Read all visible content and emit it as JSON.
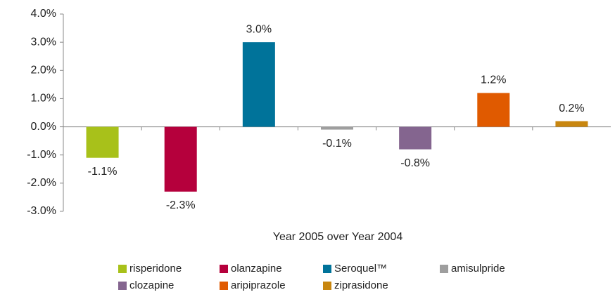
{
  "chart_data": {
    "type": "bar",
    "x_label": "Year 2005 over Year 2004",
    "ylim": [
      -3,
      4
    ],
    "yticks": [
      {
        "value": -3,
        "label": "-3.0%"
      },
      {
        "value": -2,
        "label": "-2.0%"
      },
      {
        "value": -1,
        "label": "-1.0%"
      },
      {
        "value": 0,
        "label": "0.0%"
      },
      {
        "value": 1,
        "label": "1.0%"
      },
      {
        "value": 2,
        "label": "2.0%"
      },
      {
        "value": 3,
        "label": "3.0%"
      },
      {
        "value": 4,
        "label": "4.0%"
      }
    ],
    "series": [
      {
        "name": "risperidone",
        "color": "#a8c11a",
        "values": [
          -1.1
        ],
        "value_labels": [
          "-1.1%"
        ]
      },
      {
        "name": "olanzapine",
        "color": "#b5003c",
        "values": [
          -2.3
        ],
        "value_labels": [
          "-2.3%"
        ]
      },
      {
        "name": "Seroquel™",
        "color": "#00739a",
        "values": [
          3.0
        ],
        "value_labels": [
          "3.0%"
        ]
      },
      {
        "name": "amisulpride",
        "color": "#9e9e9e",
        "values": [
          -0.1
        ],
        "value_labels": [
          "-0.1%"
        ]
      },
      {
        "name": "clozapine",
        "color": "#84658f",
        "values": [
          -0.8
        ],
        "value_labels": [
          "-0.8%"
        ]
      },
      {
        "name": "aripiprazole",
        "color": "#e05a00",
        "values": [
          1.2
        ],
        "value_labels": [
          "1.2%"
        ]
      },
      {
        "name": "ziprasidone",
        "color": "#c8860f",
        "values": [
          0.2
        ],
        "value_labels": [
          "0.2%"
        ]
      }
    ]
  }
}
